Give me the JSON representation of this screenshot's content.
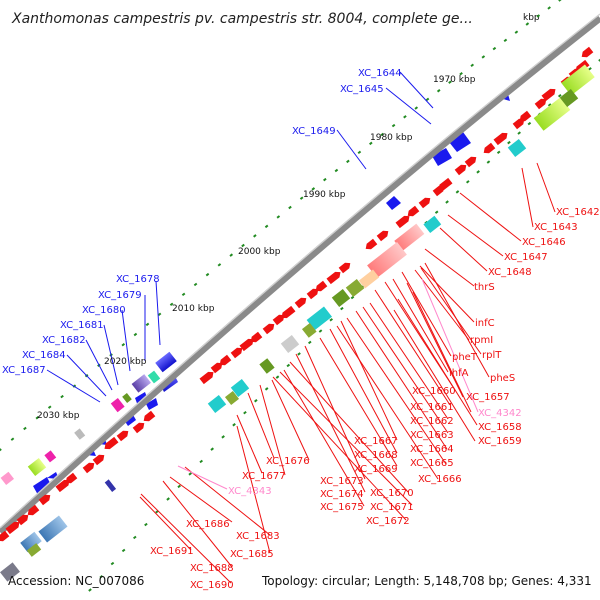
{
  "header": {
    "title": "Xanthomonas campestris pv. campestris str. 8004, complete ge...",
    "title_tail": "kbp"
  },
  "footer": {
    "accession": "Accession: NC_007086",
    "summary": "Topology: circular; Length: 5,148,708 bp; Genes: 4,331"
  },
  "scale_labels": [
    "1970 kbp",
    "1980 kbp",
    "1990 kbp",
    "2000 kbp",
    "2010 kbp",
    "2020 kbp",
    "2030 kbp"
  ],
  "labels_top": [
    "XC_1644",
    "XC_1645",
    "XC_1649",
    "XC_1678",
    "XC_1679",
    "XC_1680",
    "XC_1681",
    "XC_1682",
    "XC_1684",
    "XC_1687"
  ],
  "labels_bottom": [
    "XC_1642",
    "XC_1643",
    "XC_1646",
    "XC_1647",
    "XC_1648",
    "thrS",
    "infC",
    "rpmI",
    "rplT",
    "pheT",
    "pheS",
    "ihfA",
    "XC_1660",
    "XC_1657",
    "XC_4342",
    "XC_1661",
    "XC_1658",
    "XC_1662",
    "XC_1659",
    "XC_1663",
    "XC_1667",
    "XC_1664",
    "XC_1668",
    "XC_1665",
    "XC_1669",
    "XC_1666",
    "XC_1676",
    "XC_1673",
    "XC_1677",
    "XC_1674",
    "XC_1670",
    "XC_4343",
    "XC_1675",
    "XC_1671",
    "XC_1672",
    "XC_1686",
    "XC_1683",
    "XC_1685",
    "XC_1691",
    "XC_1688",
    "XC_1690"
  ],
  "colors": {
    "backbone": "#8a8a8a",
    "forward_gene": "#1a1aee",
    "reverse_gene": "#ee1111",
    "rRNA_tRNA": "#ff9a9a",
    "highlight_label": "#ff88cc",
    "tick": "#228b22"
  }
}
